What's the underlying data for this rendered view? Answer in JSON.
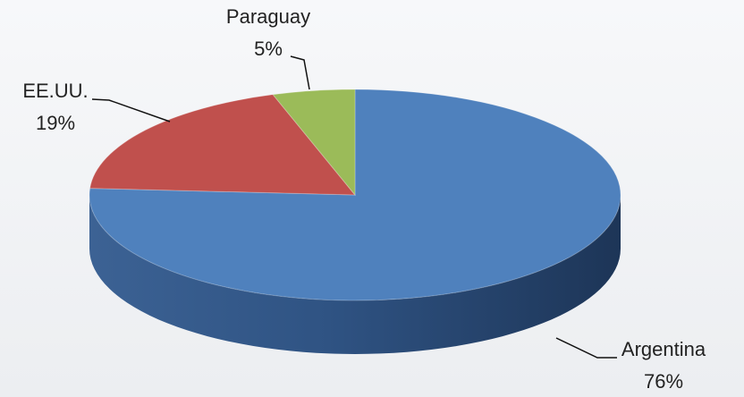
{
  "chart_data": {
    "type": "pie3d",
    "categories": [
      "Argentina",
      "EE.UU.",
      "Paraguay"
    ],
    "values": [
      76,
      19,
      5
    ],
    "value_labels": [
      "76%",
      "19%",
      "5%"
    ],
    "colors": [
      "#4f81bd",
      "#c0504d",
      "#9bbb59"
    ]
  }
}
